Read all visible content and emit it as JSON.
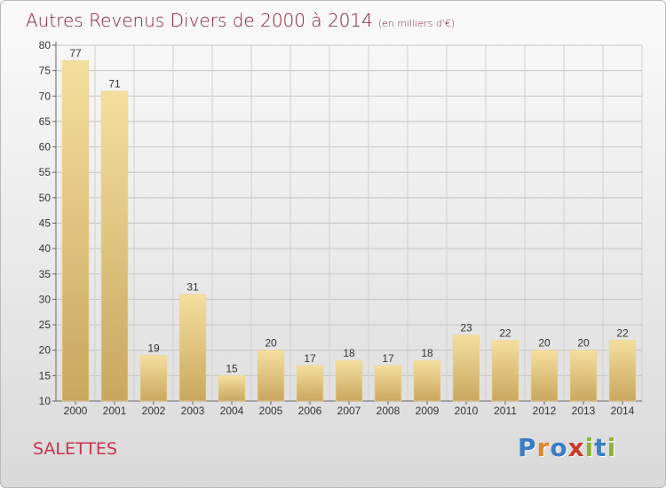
{
  "header": {
    "title": "Autres Revenus Divers de 2000 à 2014",
    "unit": "(en milliers d'€)"
  },
  "footer": {
    "commune": "SALETTES",
    "logo_text": "Proxiti"
  },
  "colors": {
    "title": "#8a2035",
    "commune": "#c8344f",
    "bar_light": "#f4df9e",
    "bar_dark": "#c9a75e",
    "logo_letters": [
      "#3b7dc4",
      "#e0852a",
      "#3b7dc4",
      "#c83a2a",
      "#8cb431",
      "#3b7dc4",
      "#8cb431"
    ]
  },
  "chart_data": {
    "type": "bar",
    "title": "Autres Revenus Divers de 2000 à 2014",
    "subtitle": "(en milliers d'€)",
    "categories": [
      "2000",
      "2001",
      "2002",
      "2003",
      "2004",
      "2005",
      "2006",
      "2007",
      "2008",
      "2009",
      "2010",
      "2011",
      "2012",
      "2013",
      "2014"
    ],
    "values": [
      77,
      71,
      19,
      31,
      15,
      20,
      17,
      18,
      17,
      18,
      23,
      22,
      20,
      20,
      22
    ],
    "ylim": [
      10,
      80
    ],
    "yticks": [
      10,
      15,
      20,
      25,
      30,
      35,
      40,
      45,
      50,
      55,
      60,
      65,
      70,
      75,
      80
    ],
    "grid": true,
    "data_labels": true
  }
}
